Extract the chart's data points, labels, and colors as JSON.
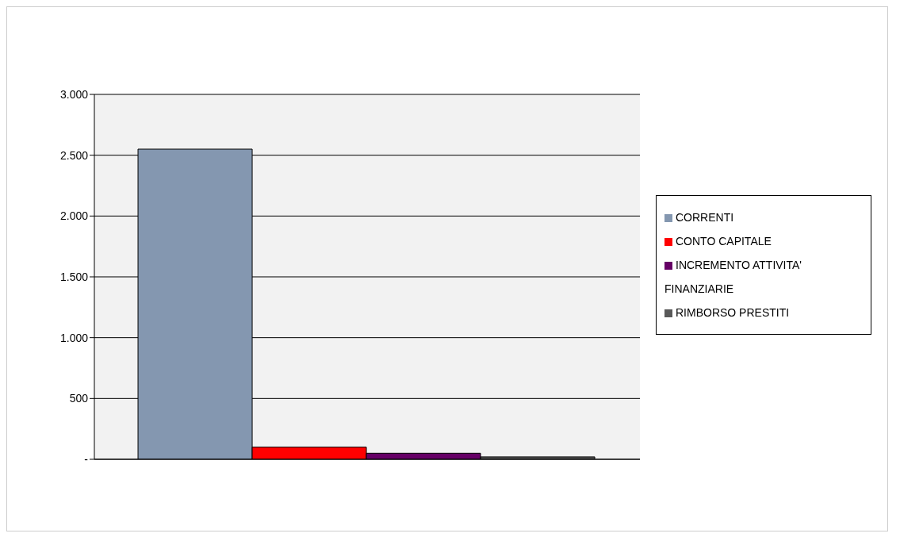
{
  "chart_data": {
    "type": "bar",
    "categories": [
      null
    ],
    "series": [
      {
        "name": "CORRENTI",
        "color": "#8497b0",
        "values": [
          2550
        ]
      },
      {
        "name": "CONTO CAPITALE",
        "color": "#ff0000",
        "values": [
          100
        ]
      },
      {
        "name": "INCREMENTO ATTIVITA' FINANZIARIE",
        "color": "#660066",
        "values": [
          50
        ]
      },
      {
        "name": "RIMBORSO PRESTITI",
        "color": "#595959",
        "values": [
          20
        ]
      }
    ],
    "ylim": [
      0,
      3000
    ],
    "yticks": [
      {
        "value": 0,
        "label": "-"
      },
      {
        "value": 500,
        "label": "500"
      },
      {
        "value": 1000,
        "label": "1.000"
      },
      {
        "value": 1500,
        "label": "1.500"
      },
      {
        "value": 2000,
        "label": "2.000"
      },
      {
        "value": 2500,
        "label": "2.500"
      },
      {
        "value": 3000,
        "label": "3.000"
      }
    ],
    "grid": "y",
    "legend": "right"
  }
}
